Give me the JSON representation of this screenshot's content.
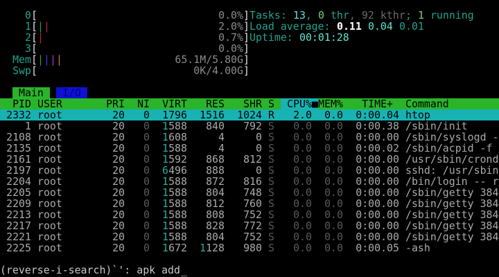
{
  "meters": [
    {
      "label": "0",
      "value": "0.0%",
      "bars": []
    },
    {
      "label": "1",
      "value": "2.0%",
      "bars": [
        "#2a9a3a",
        "#c0203a"
      ]
    },
    {
      "label": "2",
      "value": "0.7%",
      "bars": [
        "#c0203a"
      ]
    },
    {
      "label": "3",
      "value": "0.0%",
      "bars": []
    },
    {
      "label": "Mem",
      "value": "65.1M/5.80G",
      "bars": [
        "#2a9a3a",
        "#3a3ae0",
        "#b030c0",
        "#c08040"
      ]
    },
    {
      "label": "Swp",
      "value": "0K/4.00G",
      "bars": []
    }
  ],
  "summary": {
    "tasks_label": "Tasks: ",
    "tasks": "13",
    "sep1": ", ",
    "threads": "0",
    "thr_label": " thr",
    "kthr": ", 92 kthr",
    "sep2": "; ",
    "running": "1",
    "running_label": " running",
    "load_label": "Load average: ",
    "load1": "0.11",
    "load5": "0.04",
    "load15": "0.01",
    "uptime_label": "Uptime: ",
    "uptime": "00:01:28"
  },
  "tabs": [
    {
      "label": "Main",
      "active": true
    },
    {
      "label": "I/O",
      "active": false
    }
  ],
  "columns": {
    "pid": "PID",
    "user": "USER",
    "pri": "PRI",
    "ni": "NI",
    "virt": "VIRT",
    "res": "RES",
    "shr": "SHR",
    "state": "S",
    "cpu": "CPU%",
    "sort_marker": "■",
    "mem": "MEM%",
    "time": "TIME+",
    "command": "Command"
  },
  "processes": [
    {
      "pid": "2332",
      "user": "root",
      "pri": "20",
      "ni": "0",
      "virt": "1796",
      "res": "1516",
      "shr": "1024",
      "state": "R",
      "cpu": "2.0",
      "mem": "0.0",
      "time": "0:00.04",
      "command": "htop",
      "selected": true
    },
    {
      "pid": "1",
      "user": "root",
      "pri": "20",
      "ni": "0",
      "virt": "1588",
      "res": "840",
      "shr": "792",
      "state": "S",
      "cpu": "0.0",
      "mem": "0.0",
      "time": "0:00.38",
      "command": "/sbin/init"
    },
    {
      "pid": "2108",
      "user": "root",
      "pri": "20",
      "ni": "0",
      "virt": "1608",
      "res": "4",
      "shr": "0",
      "state": "S",
      "cpu": "0.0",
      "mem": "0.0",
      "time": "0:00.00",
      "command": "/sbin/syslogd -"
    },
    {
      "pid": "2135",
      "user": "root",
      "pri": "20",
      "ni": "0",
      "virt": "1588",
      "res": "4",
      "shr": "0",
      "state": "S",
      "cpu": "0.0",
      "mem": "0.0",
      "time": "0:00.02",
      "command": "/sbin/acpid -f"
    },
    {
      "pid": "2161",
      "user": "root",
      "pri": "20",
      "ni": "0",
      "virt": "1592",
      "res": "868",
      "shr": "812",
      "state": "S",
      "cpu": "0.0",
      "mem": "0.0",
      "time": "0:00.00",
      "command": "/usr/sbin/crond"
    },
    {
      "pid": "2197",
      "user": "root",
      "pri": "20",
      "ni": "0",
      "virt": "6496",
      "res": "888",
      "shr": "0",
      "state": "S",
      "cpu": "0.0",
      "mem": "0.0",
      "time": "0:00.00",
      "command": "sshd: /usr/sbin"
    },
    {
      "pid": "2204",
      "user": "root",
      "pri": "20",
      "ni": "0",
      "virt": "1588",
      "res": "872",
      "shr": "816",
      "state": "S",
      "cpu": "0.0",
      "mem": "0.0",
      "time": "0:00.00",
      "command": "/bin/login -- r"
    },
    {
      "pid": "2205",
      "user": "root",
      "pri": "20",
      "ni": "0",
      "virt": "1588",
      "res": "804",
      "shr": "748",
      "state": "S",
      "cpu": "0.0",
      "mem": "0.0",
      "time": "0:00.00",
      "command": "/sbin/getty 384"
    },
    {
      "pid": "2209",
      "user": "root",
      "pri": "20",
      "ni": "0",
      "virt": "1588",
      "res": "812",
      "shr": "760",
      "state": "S",
      "cpu": "0.0",
      "mem": "0.0",
      "time": "0:00.00",
      "command": "/sbin/getty 384"
    },
    {
      "pid": "2213",
      "user": "root",
      "pri": "20",
      "ni": "0",
      "virt": "1588",
      "res": "808",
      "shr": "752",
      "state": "S",
      "cpu": "0.0",
      "mem": "0.0",
      "time": "0:00.00",
      "command": "/sbin/getty 384"
    },
    {
      "pid": "2217",
      "user": "root",
      "pri": "20",
      "ni": "0",
      "virt": "1588",
      "res": "828",
      "shr": "772",
      "state": "S",
      "cpu": "0.0",
      "mem": "0.0",
      "time": "0:00.00",
      "command": "/sbin/getty 384"
    },
    {
      "pid": "2221",
      "user": "root",
      "pri": "20",
      "ni": "0",
      "virt": "1588",
      "res": "804",
      "shr": "752",
      "state": "S",
      "cpu": "0.0",
      "mem": "0.0",
      "time": "0:00.00",
      "command": "/sbin/getty 384"
    },
    {
      "pid": "2225",
      "user": "root",
      "pri": "20",
      "ni": "0",
      "virt": "1672",
      "res": "1128",
      "shr": "980",
      "state": "S",
      "cpu": "0.0",
      "mem": "0.0",
      "time": "0:00.05",
      "command": "-ash"
    }
  ],
  "prompt": {
    "text": "(reverse-i-search)`': apk add",
    "cursor": "_"
  },
  "colors": {
    "header_bg": "#2ab42a",
    "selected_bg": "#18b2b2",
    "label": "#1fa38f",
    "value": "#5fe0d0",
    "dim": "#5a5a5a",
    "text": "#aaaaaa"
  }
}
